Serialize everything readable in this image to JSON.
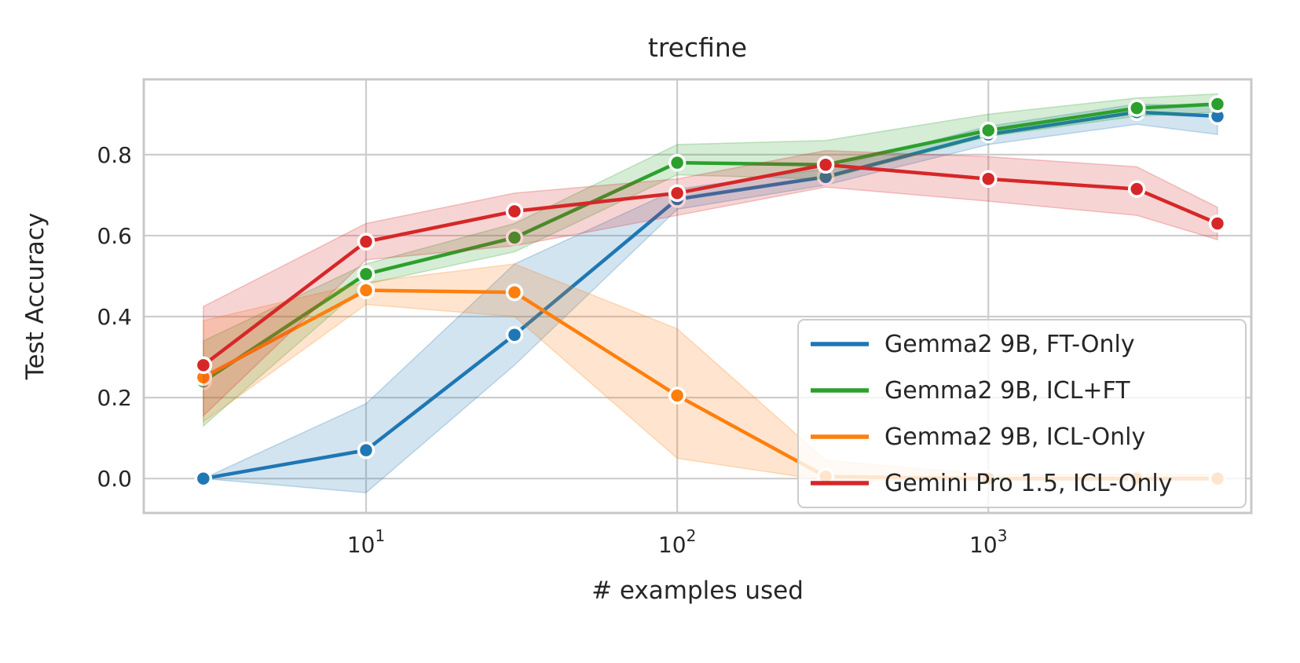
{
  "figure": {
    "title": "trecfine",
    "xlabel": "# examples used",
    "ylabel": "Test Accuracy"
  },
  "chart_data": {
    "type": "line",
    "title": "trecfine",
    "xlabel": "# examples used",
    "ylabel": "Test Accuracy",
    "x_scale": "log",
    "grid": true,
    "legend_position": "lower right",
    "xlim": [
      1.93,
      7000
    ],
    "ylim": [
      -0.085,
      0.986
    ],
    "x": [
      3,
      10,
      30,
      100,
      300,
      1000,
      3000,
      5450
    ],
    "x_ticks": [
      {
        "value": 10,
        "base": "10",
        "sup": "1"
      },
      {
        "value": 100,
        "base": "10",
        "sup": "2"
      },
      {
        "value": 1000,
        "base": "10",
        "sup": "3"
      }
    ],
    "y_ticks": [
      {
        "value": 0.0,
        "label": "0.0"
      },
      {
        "value": 0.2,
        "label": "0.2"
      },
      {
        "value": 0.4,
        "label": "0.4"
      },
      {
        "value": 0.6,
        "label": "0.6"
      },
      {
        "value": 0.8,
        "label": "0.8"
      }
    ],
    "series": [
      {
        "name": "Gemma2 9B, FT-Only",
        "color": "#1f77b4",
        "values": [
          0.0,
          0.07,
          0.355,
          0.69,
          0.745,
          0.85,
          0.905,
          0.895
        ],
        "band_low": [
          0.0,
          -0.035,
          0.28,
          0.665,
          0.725,
          0.825,
          0.875,
          0.85
        ],
        "band_high": [
          0.0,
          0.185,
          0.53,
          0.715,
          0.765,
          0.87,
          0.925,
          0.92
        ]
      },
      {
        "name": "Gemma2 9B, ICL+FT",
        "color": "#2ca02c",
        "values": [
          0.24,
          0.505,
          0.595,
          0.78,
          0.775,
          0.86,
          0.915,
          0.925
        ],
        "band_low": [
          0.13,
          0.48,
          0.56,
          0.75,
          0.74,
          0.845,
          0.895,
          0.905
        ],
        "band_high": [
          0.34,
          0.53,
          0.63,
          0.825,
          0.835,
          0.9,
          0.94,
          0.95
        ]
      },
      {
        "name": "Gemma2 9B, ICL-Only",
        "color": "#ff7f0e",
        "values": [
          0.25,
          0.465,
          0.46,
          0.205,
          0.005,
          0.0,
          0.0,
          0.0
        ],
        "band_low": [
          0.14,
          0.43,
          0.4,
          0.05,
          -0.005,
          -0.005,
          -0.005,
          -0.005
        ],
        "band_high": [
          0.39,
          0.485,
          0.53,
          0.37,
          0.045,
          0.01,
          0.01,
          0.01
        ]
      },
      {
        "name": "Gemini Pro 1.5, ICL-Only",
        "color": "#d62728",
        "values": [
          0.28,
          0.585,
          0.66,
          0.705,
          0.775,
          0.74,
          0.715,
          0.63
        ],
        "band_low": [
          0.155,
          0.54,
          0.575,
          0.65,
          0.72,
          0.685,
          0.65,
          0.59
        ],
        "band_high": [
          0.425,
          0.63,
          0.705,
          0.74,
          0.81,
          0.795,
          0.77,
          0.67
        ]
      }
    ]
  }
}
